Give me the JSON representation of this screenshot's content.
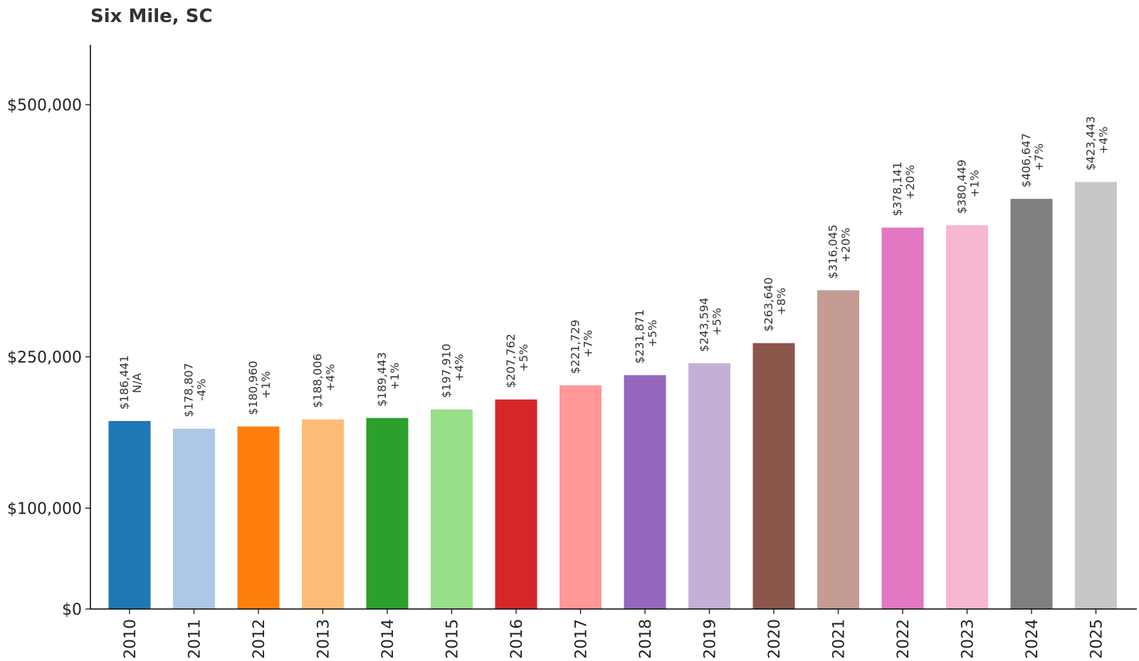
{
  "chart_data": {
    "type": "bar",
    "title": "Six Mile, SC",
    "xlabel": "",
    "ylabel": "",
    "categories": [
      "2010",
      "2011",
      "2012",
      "2013",
      "2014",
      "2015",
      "2016",
      "2017",
      "2018",
      "2019",
      "2020",
      "2021",
      "2022",
      "2023",
      "2024",
      "2025"
    ],
    "values": [
      186441,
      178807,
      180960,
      188006,
      189443,
      197910,
      207762,
      221729,
      231871,
      243594,
      263640,
      316045,
      378141,
      380449,
      406647,
      423443
    ],
    "value_labels": [
      "$186,441",
      "$178,807",
      "$180,960",
      "$188,006",
      "$189,443",
      "$197,910",
      "$207,762",
      "$221,729",
      "$231,871",
      "$243,594",
      "$263,640",
      "$316,045",
      "$378,141",
      "$380,449",
      "$406,647",
      "$423,443"
    ],
    "change_labels": [
      "N/A",
      "-4%",
      "+1%",
      "+4%",
      "+1%",
      "+4%",
      "+5%",
      "+7%",
      "+5%",
      "+5%",
      "+8%",
      "+20%",
      "+20%",
      "+1%",
      "+7%",
      "+4%"
    ],
    "colors": [
      "#1f77b4",
      "#aec7e8",
      "#ff7f0e",
      "#ffbb78",
      "#2ca02c",
      "#98df8a",
      "#d62728",
      "#ff9896",
      "#9467bd",
      "#c5b0d5",
      "#8c564b",
      "#c49c94",
      "#e377c2",
      "#f7b6d2",
      "#7f7f7f",
      "#c7c7c7"
    ],
    "yticks": [
      0,
      100000,
      250000,
      500000
    ],
    "ytick_labels": [
      "$0",
      "$100,000",
      "$250,000",
      "$500,000"
    ],
    "ylim": [
      0,
      560000
    ],
    "grid": false,
    "legend": "none"
  }
}
